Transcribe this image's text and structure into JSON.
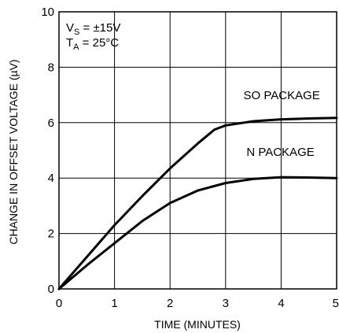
{
  "chart_data": {
    "type": "line",
    "xlabel": "TIME (MINUTES)",
    "ylabel": "CHANGE IN OFFSET VOLTAGE (µV)",
    "xlim": [
      0,
      5
    ],
    "ylim": [
      0,
      10
    ],
    "x_ticks": [
      "0",
      "1",
      "2",
      "3",
      "4",
      "5"
    ],
    "y_ticks": [
      "0",
      "2",
      "4",
      "6",
      "8",
      "10"
    ],
    "grid": true,
    "conditions": {
      "vs": {
        "main": "V",
        "sub": "S",
        "rest": " = ±15V"
      },
      "ta": {
        "main": "T",
        "sub": "A",
        "rest": " = 25°C"
      }
    },
    "series": [
      {
        "name": "SO PACKAGE",
        "x": [
          0,
          0.5,
          1,
          1.5,
          2,
          2.5,
          2.8,
          3,
          3.5,
          4,
          4.5,
          5
        ],
        "y": [
          0,
          1.15,
          2.3,
          3.35,
          4.35,
          5.25,
          5.75,
          5.9,
          6.05,
          6.12,
          6.15,
          6.17
        ]
      },
      {
        "name": "N PACKAGE",
        "x": [
          0,
          0.5,
          1,
          1.5,
          2,
          2.5,
          3,
          3.5,
          4,
          4.5,
          5
        ],
        "y": [
          0,
          0.85,
          1.65,
          2.45,
          3.1,
          3.55,
          3.82,
          3.97,
          4.03,
          4.02,
          4.0
        ]
      }
    ]
  }
}
